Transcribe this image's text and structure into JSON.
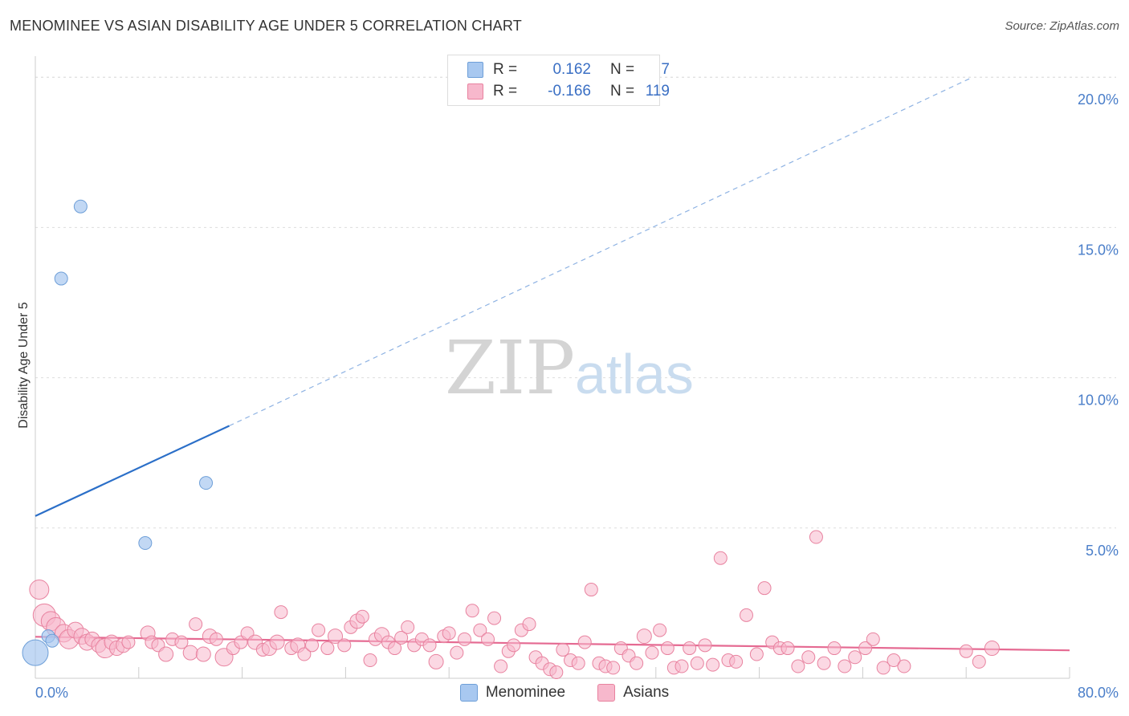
{
  "title": "MENOMINEE VS ASIAN DISABILITY AGE UNDER 5 CORRELATION CHART",
  "source": "Source: ZipAtlas.com",
  "watermark": {
    "zip": "ZIP",
    "atlas": "atlas"
  },
  "legend": {
    "rows": [
      {
        "r_label": "R =",
        "r_value": "0.162",
        "n_label": "N =",
        "n_value": "7",
        "color": "#a8c8f0",
        "border": "#6e9fd8"
      },
      {
        "r_label": "R =",
        "r_value": "-0.166",
        "n_label": "N =",
        "n_value": "119",
        "color": "#f7b8cc",
        "border": "#e8829f"
      }
    ]
  },
  "bottom_legend": [
    {
      "label": "Menominee",
      "color": "#a8c8f0",
      "border": "#6e9fd8"
    },
    {
      "label": "Asians",
      "color": "#f7b8cc",
      "border": "#e8829f"
    }
  ],
  "chart_data": {
    "type": "scatter",
    "title": "MENOMINEE VS ASIAN DISABILITY AGE UNDER 5 CORRELATION CHART",
    "xlabel": "",
    "ylabel": "Disability Age Under 5",
    "xlim": [
      0,
      80
    ],
    "ylim": [
      0,
      20.7
    ],
    "x_tick_labels": [
      "0.0%",
      "80.0%"
    ],
    "y_ticks": [
      5,
      10,
      15,
      20
    ],
    "y_tick_labels": [
      "5.0%",
      "10.0%",
      "15.0%",
      "20.0%"
    ],
    "grid": true,
    "legend_position": "top-center",
    "series": [
      {
        "name": "Menominee",
        "color": "#a8c8f0",
        "border": "#6e9fd8",
        "line_color": "#2b6fc8",
        "trend": {
          "x0": 0,
          "y0": 5.4,
          "x_solid_end": 15,
          "y_solid_end": 8.4,
          "x1": 72.5,
          "y1": 20.0
        },
        "points": [
          [
            0.0,
            0.85,
            16
          ],
          [
            1.0,
            1.4,
            8
          ],
          [
            1.3,
            1.25,
            8
          ],
          [
            3.5,
            15.7,
            8
          ],
          [
            2.0,
            13.3,
            8
          ],
          [
            13.2,
            6.5,
            8
          ],
          [
            8.5,
            4.5,
            8
          ]
        ]
      },
      {
        "name": "Asians",
        "color": "#f7b8cc",
        "border": "#e8829f",
        "line_color": "#e56a92",
        "trend": {
          "x0": 0,
          "y0": 1.38,
          "x1": 80,
          "y1": 0.93
        },
        "points": [
          [
            0.3,
            2.95,
            12
          ],
          [
            0.7,
            2.1,
            14
          ],
          [
            1.2,
            1.9,
            12
          ],
          [
            1.6,
            1.7,
            12
          ],
          [
            2.2,
            1.5,
            11
          ],
          [
            2.6,
            1.3,
            12
          ],
          [
            3.1,
            1.6,
            10
          ],
          [
            3.6,
            1.4,
            10
          ],
          [
            4.0,
            1.2,
            10
          ],
          [
            4.4,
            1.3,
            9
          ],
          [
            4.9,
            1.1,
            9
          ],
          [
            5.4,
            1.0,
            12
          ],
          [
            5.9,
            1.2,
            9
          ],
          [
            6.3,
            1.0,
            9
          ],
          [
            6.8,
            1.1,
            9
          ],
          [
            7.2,
            1.2,
            8
          ],
          [
            8.7,
            1.5,
            9
          ],
          [
            9.0,
            1.2,
            8
          ],
          [
            9.5,
            1.1,
            8
          ],
          [
            10.1,
            0.8,
            9
          ],
          [
            10.6,
            1.3,
            8
          ],
          [
            11.3,
            1.2,
            8
          ],
          [
            12.0,
            0.85,
            9
          ],
          [
            12.4,
            1.8,
            8
          ],
          [
            13.0,
            0.8,
            9
          ],
          [
            13.5,
            1.4,
            9
          ],
          [
            14.0,
            1.3,
            8
          ],
          [
            14.6,
            0.7,
            11
          ],
          [
            15.3,
            1.0,
            8
          ],
          [
            15.9,
            1.2,
            8
          ],
          [
            16.4,
            1.5,
            8
          ],
          [
            17.0,
            1.2,
            9
          ],
          [
            17.6,
            0.95,
            8
          ],
          [
            18.1,
            1.0,
            9
          ],
          [
            18.7,
            1.2,
            9
          ],
          [
            19.0,
            2.2,
            8
          ],
          [
            19.8,
            1.0,
            8
          ],
          [
            20.3,
            1.1,
            9
          ],
          [
            20.8,
            0.8,
            8
          ],
          [
            21.4,
            1.1,
            8
          ],
          [
            21.9,
            1.6,
            8
          ],
          [
            22.6,
            1.0,
            8
          ],
          [
            23.2,
            1.4,
            9
          ],
          [
            23.9,
            1.1,
            8
          ],
          [
            24.4,
            1.7,
            8
          ],
          [
            24.9,
            1.9,
            9
          ],
          [
            25.3,
            2.05,
            8
          ],
          [
            25.9,
            0.6,
            8
          ],
          [
            26.3,
            1.3,
            8
          ],
          [
            26.8,
            1.45,
            9
          ],
          [
            27.3,
            1.2,
            8
          ],
          [
            27.8,
            1.0,
            8
          ],
          [
            28.3,
            1.35,
            8
          ],
          [
            28.8,
            1.7,
            8
          ],
          [
            29.3,
            1.1,
            8
          ],
          [
            29.9,
            1.3,
            8
          ],
          [
            30.5,
            1.1,
            8
          ],
          [
            31.0,
            0.55,
            9
          ],
          [
            31.6,
            1.4,
            8
          ],
          [
            32.0,
            1.5,
            8
          ],
          [
            32.6,
            0.85,
            8
          ],
          [
            33.2,
            1.3,
            8
          ],
          [
            33.8,
            2.25,
            8
          ],
          [
            34.4,
            1.6,
            8
          ],
          [
            35.0,
            1.3,
            8
          ],
          [
            35.5,
            2.0,
            8
          ],
          [
            36.0,
            0.4,
            8
          ],
          [
            36.6,
            0.9,
            8
          ],
          [
            37.0,
            1.1,
            8
          ],
          [
            37.6,
            1.6,
            8
          ],
          [
            38.2,
            1.8,
            8
          ],
          [
            38.7,
            0.7,
            8
          ],
          [
            39.2,
            0.5,
            8
          ],
          [
            39.8,
            0.3,
            8
          ],
          [
            40.3,
            0.2,
            8
          ],
          [
            40.8,
            0.95,
            8
          ],
          [
            41.4,
            0.6,
            8
          ],
          [
            42.0,
            0.5,
            8
          ],
          [
            42.5,
            1.2,
            8
          ],
          [
            43.0,
            2.95,
            8
          ],
          [
            43.6,
            0.5,
            8
          ],
          [
            44.1,
            0.4,
            8
          ],
          [
            44.7,
            0.35,
            8
          ],
          [
            45.3,
            1.0,
            8
          ],
          [
            45.9,
            0.75,
            8
          ],
          [
            46.5,
            0.5,
            8
          ],
          [
            47.1,
            1.4,
            9
          ],
          [
            47.7,
            0.85,
            8
          ],
          [
            48.3,
            1.6,
            8
          ],
          [
            48.9,
            1.0,
            8
          ],
          [
            49.4,
            0.35,
            8
          ],
          [
            50.0,
            0.4,
            8
          ],
          [
            50.6,
            1.0,
            8
          ],
          [
            51.2,
            0.5,
            8
          ],
          [
            51.8,
            1.1,
            8
          ],
          [
            52.4,
            0.45,
            8
          ],
          [
            53.0,
            4.0,
            8
          ],
          [
            53.6,
            0.6,
            8
          ],
          [
            54.2,
            0.55,
            8
          ],
          [
            55.0,
            2.1,
            8
          ],
          [
            55.8,
            0.8,
            8
          ],
          [
            56.4,
            3.0,
            8
          ],
          [
            57.0,
            1.2,
            8
          ],
          [
            57.6,
            1.0,
            8
          ],
          [
            58.2,
            1.0,
            8
          ],
          [
            59.0,
            0.4,
            8
          ],
          [
            59.8,
            0.7,
            8
          ],
          [
            60.4,
            4.7,
            8
          ],
          [
            61.0,
            0.5,
            8
          ],
          [
            61.8,
            1.0,
            8
          ],
          [
            62.6,
            0.4,
            8
          ],
          [
            63.4,
            0.7,
            8
          ],
          [
            64.2,
            1.0,
            8
          ],
          [
            64.8,
            1.3,
            8
          ],
          [
            65.6,
            0.35,
            8
          ],
          [
            66.4,
            0.6,
            8
          ],
          [
            67.2,
            0.4,
            8
          ],
          [
            72.0,
            0.9,
            8
          ],
          [
            73.0,
            0.55,
            8
          ],
          [
            74.0,
            1.0,
            9
          ]
        ]
      }
    ]
  }
}
